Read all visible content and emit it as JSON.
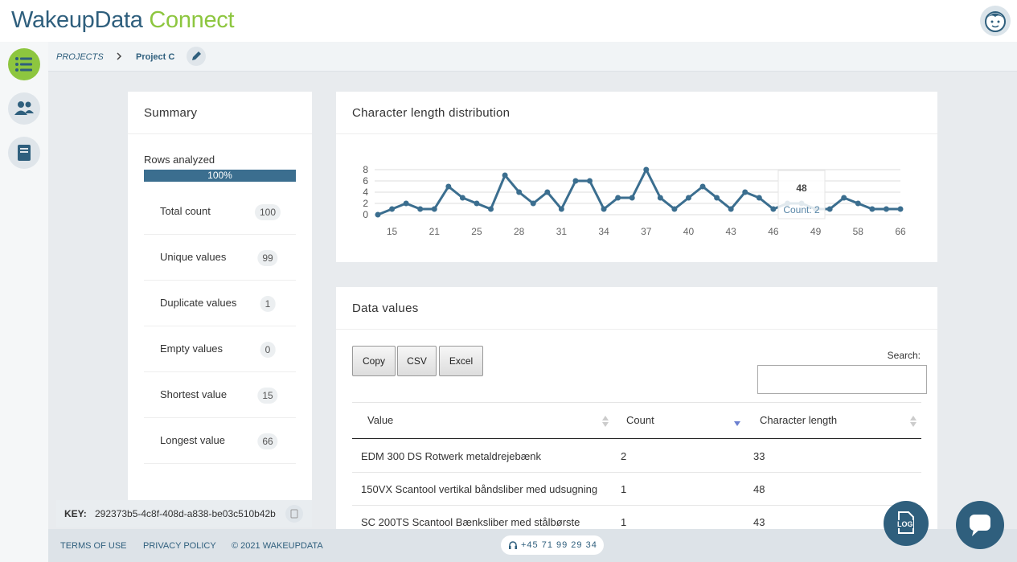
{
  "header": {
    "logo_main": "WakeupData",
    "logo_accent": "Connect"
  },
  "breadcrumb": {
    "root": "PROJECTS",
    "current": "Project C"
  },
  "summary": {
    "title": "Summary",
    "rows_analyzed_label": "Rows analyzed",
    "rows_analyzed_progress": "100%",
    "items": [
      {
        "label": "Total count",
        "value": 100
      },
      {
        "label": "Unique values",
        "value": 99
      },
      {
        "label": "Duplicate values",
        "value": 1
      },
      {
        "label": "Empty values",
        "value": 0
      },
      {
        "label": "Shortest value",
        "value": 15
      },
      {
        "label": "Longest value",
        "value": 66
      }
    ]
  },
  "key": {
    "label": "KEY:",
    "value": "292373b5-4c8f-408d-a838-be03c510b42b"
  },
  "chart_data": {
    "type": "line",
    "title": "Character length distribution",
    "categories": [
      null,
      15,
      null,
      null,
      21,
      null,
      null,
      25,
      null,
      null,
      28,
      null,
      null,
      31,
      null,
      null,
      34,
      null,
      null,
      37,
      null,
      null,
      40,
      null,
      null,
      43,
      null,
      null,
      46,
      null,
      null,
      49,
      null,
      null,
      58,
      null,
      null,
      66
    ],
    "values": [
      0,
      1,
      2,
      1,
      1,
      5,
      3,
      2,
      1,
      7,
      4,
      2,
      4,
      1,
      6,
      6,
      1,
      3,
      3,
      8,
      3,
      1,
      3,
      5,
      3,
      1,
      4,
      3,
      1,
      2,
      2,
      1,
      1,
      3,
      2,
      1,
      1,
      1
    ],
    "color": "#3b6e8f",
    "ylim": [
      0,
      8
    ],
    "yticks": [
      0,
      2,
      4,
      6,
      8
    ],
    "grid": true,
    "tooltip": {
      "title": "48",
      "text": "Count: 2"
    }
  },
  "data_values": {
    "title": "Data values",
    "buttons": [
      "Copy",
      "CSV",
      "Excel"
    ],
    "search_label": "Search:",
    "table": {
      "headers": [
        "Value",
        "Count",
        "Character length"
      ],
      "rows": [
        [
          "EDM 300 DS Rotwerk metaldrejebænk",
          2,
          33
        ],
        [
          "150VX Scantool vertikal båndsliber med udsugning",
          1,
          48
        ],
        [
          "SC 200TS Scantool Bænksliber med stålbørste",
          1,
          43
        ]
      ]
    }
  },
  "footer": {
    "links": [
      "TERMS OF USE",
      "PRIVACY POLICY"
    ],
    "copyright": "© 2021 WAKEUPDATA",
    "phone": "+45 71 99 29 34"
  },
  "floating": {
    "log": "LOG"
  }
}
